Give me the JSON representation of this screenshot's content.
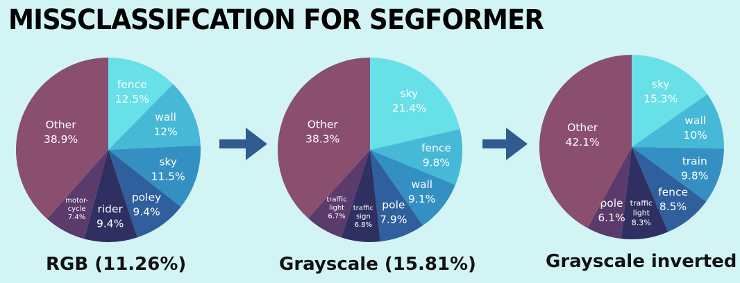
{
  "title": "MISSCLASSIFCATION FOR SEGFORMER",
  "colors": {
    "background": "#d3f4f4",
    "arrow": "#2f5b8f"
  },
  "chart_data": [
    {
      "type": "pie",
      "caption": "RGB (11.26%)",
      "slices": [
        {
          "label": "fence",
          "percent": "12.5%",
          "value": 12.5,
          "color": "#67e0e8"
        },
        {
          "label": "wall",
          "percent": "12%",
          "value": 12.0,
          "color": "#46b9d6"
        },
        {
          "label": "sky",
          "percent": "11.5%",
          "value": 11.5,
          "color": "#3490c3"
        },
        {
          "label": "poley",
          "percent": "9.4%",
          "value": 9.4,
          "color": "#2f5f9c"
        },
        {
          "label": "rider",
          "percent": "9.4%",
          "value": 9.4,
          "color": "#2f2f62"
        },
        {
          "label": "motor-cycle",
          "label_lines": [
            "motor-",
            "cycle"
          ],
          "percent": "7.4%",
          "value": 7.4,
          "color": "#5a3b6b"
        },
        {
          "label": "Other",
          "percent": "38.9%",
          "value": 38.9,
          "color": "#8a4e6e"
        }
      ]
    },
    {
      "type": "pie",
      "caption": "Grayscale (15.81%)",
      "slices": [
        {
          "label": "sky",
          "percent": "21.4%",
          "value": 21.4,
          "color": "#67e0e8"
        },
        {
          "label": "fence",
          "percent": "9.8%",
          "value": 9.8,
          "color": "#46b9d6"
        },
        {
          "label": "wall",
          "percent": "9.1%",
          "value": 9.1,
          "color": "#3490c3"
        },
        {
          "label": "pole",
          "percent": "7.9%",
          "value": 7.9,
          "color": "#2f5f9c"
        },
        {
          "label": "traffic sign",
          "label_lines": [
            "traffic",
            "sign"
          ],
          "percent": "6.8%",
          "value": 6.8,
          "color": "#2f2f62"
        },
        {
          "label": "traffic light",
          "label_lines": [
            "traffic",
            "light"
          ],
          "percent": "6.7%",
          "value": 6.7,
          "color": "#5a3b6b"
        },
        {
          "label": "Other",
          "percent": "38.3%",
          "value": 38.3,
          "color": "#8a4e6e"
        }
      ]
    },
    {
      "type": "pie",
      "caption": "Grayscale inverted",
      "slices": [
        {
          "label": "sky",
          "percent": "15.3%",
          "value": 15.3,
          "color": "#67e0e8"
        },
        {
          "label": "wall",
          "percent": "10%",
          "value": 10.0,
          "color": "#46b9d6"
        },
        {
          "label": "train",
          "percent": "9.8%",
          "value": 9.8,
          "color": "#3490c3"
        },
        {
          "label": "fence",
          "percent": "8.5%",
          "value": 8.5,
          "color": "#2f5f9c"
        },
        {
          "label": "traffic light",
          "label_lines": [
            "traffic",
            "light"
          ],
          "percent": "8.3%",
          "value": 8.3,
          "color": "#2f2f62"
        },
        {
          "label": "pole",
          "percent": "6.1%",
          "value": 6.1,
          "color": "#5a3b6b"
        },
        {
          "label": "Other",
          "percent": "42.1%",
          "value": 42.1,
          "color": "#8a4e6e"
        }
      ]
    }
  ]
}
